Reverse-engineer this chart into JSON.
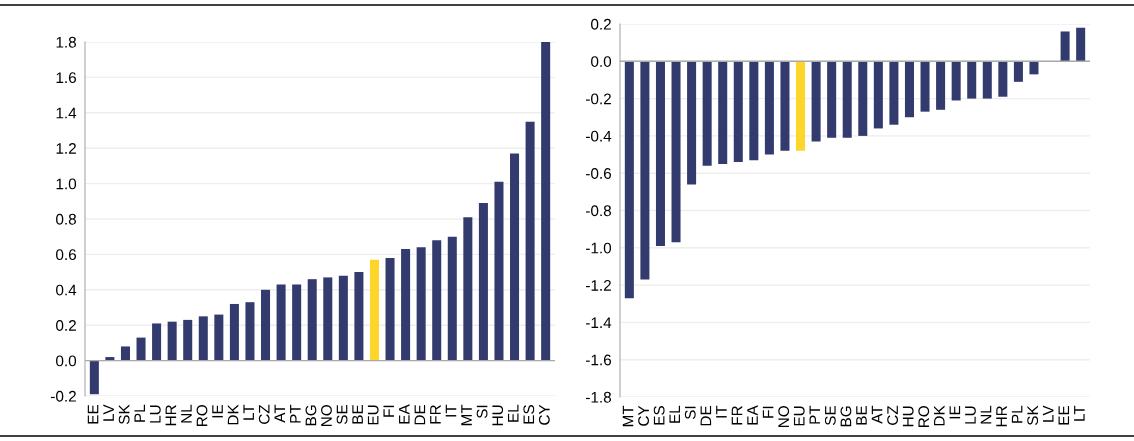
{
  "chart_data": [
    {
      "type": "bar",
      "categories": [
        "EE",
        "LV",
        "SK",
        "PL",
        "LU",
        "HR",
        "NL",
        "RO",
        "IE",
        "DK",
        "LT",
        "CZ",
        "AT",
        "PT",
        "BG",
        "NO",
        "SE",
        "BE",
        "EU",
        "FI",
        "EA",
        "DE",
        "FR",
        "IT",
        "MT",
        "SI",
        "HU",
        "EL",
        "ES",
        "CY"
      ],
      "values": [
        -0.19,
        0.02,
        0.08,
        0.13,
        0.21,
        0.22,
        0.23,
        0.25,
        0.26,
        0.32,
        0.33,
        0.4,
        0.43,
        0.43,
        0.46,
        0.47,
        0.48,
        0.5,
        0.57,
        0.58,
        0.63,
        0.64,
        0.68,
        0.7,
        0.81,
        0.89,
        1.01,
        1.17,
        1.35,
        1.8
      ],
      "colors": [
        "#333a6e",
        "#333a6e",
        "#333a6e",
        "#333a6e",
        "#333a6e",
        "#333a6e",
        "#333a6e",
        "#333a6e",
        "#333a6e",
        "#333a6e",
        "#333a6e",
        "#333a6e",
        "#333a6e",
        "#333a6e",
        "#333a6e",
        "#333a6e",
        "#333a6e",
        "#333a6e",
        "#fed52b",
        "#333a6e",
        "#333a6e",
        "#333a6e",
        "#333a6e",
        "#333a6e",
        "#333a6e",
        "#333a6e",
        "#333a6e",
        "#333a6e",
        "#333a6e",
        "#333a6e"
      ],
      "ylim": [
        -0.2,
        1.8
      ],
      "yticks": [
        {
          "value": -0.2,
          "label": "-0.2"
        },
        {
          "value": 0,
          "label": "0.0"
        },
        {
          "value": 0.2,
          "label": "0.2"
        },
        {
          "value": 0.4,
          "label": "0.4"
        },
        {
          "value": 0.6,
          "label": "0.6"
        },
        {
          "value": 0.8,
          "label": "0.8"
        },
        {
          "value": 1.0,
          "label": "1.0"
        },
        {
          "value": 1.2,
          "label": "1.2"
        },
        {
          "value": 1.4,
          "label": "1.4"
        },
        {
          "value": 1.6,
          "label": "1.6"
        },
        {
          "value": 1.8,
          "label": "1.8"
        }
      ],
      "grid": "y"
    },
    {
      "type": "bar",
      "categories": [
        "MT",
        "CY",
        "ES",
        "EL",
        "SI",
        "DE",
        "IT",
        "FR",
        "EA",
        "FI",
        "NO",
        "EU",
        "PT",
        "SE",
        "BG",
        "BE",
        "AT",
        "CZ",
        "HU",
        "RO",
        "DK",
        "IE",
        "LU",
        "NL",
        "HR",
        "PL",
        "SK",
        "LV",
        "EE",
        "LT"
      ],
      "values": [
        -1.27,
        -1.17,
        -0.99,
        -0.97,
        -0.66,
        -0.56,
        -0.55,
        -0.54,
        -0.53,
        -0.5,
        -0.48,
        -0.48,
        -0.43,
        -0.41,
        -0.41,
        -0.4,
        -0.36,
        -0.34,
        -0.3,
        -0.27,
        -0.26,
        -0.21,
        -0.2,
        -0.2,
        -0.19,
        -0.11,
        -0.07,
        0.0,
        0.16,
        0.18
      ],
      "colors": [
        "#333a6e",
        "#333a6e",
        "#333a6e",
        "#333a6e",
        "#333a6e",
        "#333a6e",
        "#333a6e",
        "#333a6e",
        "#333a6e",
        "#333a6e",
        "#333a6e",
        "#fed52b",
        "#333a6e",
        "#333a6e",
        "#333a6e",
        "#333a6e",
        "#333a6e",
        "#333a6e",
        "#333a6e",
        "#333a6e",
        "#333a6e",
        "#333a6e",
        "#333a6e",
        "#333a6e",
        "#333a6e",
        "#333a6e",
        "#333a6e",
        "#333a6e",
        "#333a6e",
        "#333a6e"
      ],
      "ylim": [
        -1.8,
        0.2
      ],
      "yticks": [
        {
          "value": -1.8,
          "label": "-1.8"
        },
        {
          "value": -1.6,
          "label": "-1.6"
        },
        {
          "value": -1.4,
          "label": "-1.4"
        },
        {
          "value": -1.2,
          "label": "-1.2"
        },
        {
          "value": -1.0,
          "label": "-1.0"
        },
        {
          "value": -0.8,
          "label": "-0.8"
        },
        {
          "value": -0.6,
          "label": "-0.6"
        },
        {
          "value": -0.4,
          "label": "-0.4"
        },
        {
          "value": -0.2,
          "label": "-0.2"
        },
        {
          "value": 0,
          "label": "0.0"
        },
        {
          "value": 0.2,
          "label": "0.2"
        }
      ],
      "grid": "y"
    }
  ]
}
